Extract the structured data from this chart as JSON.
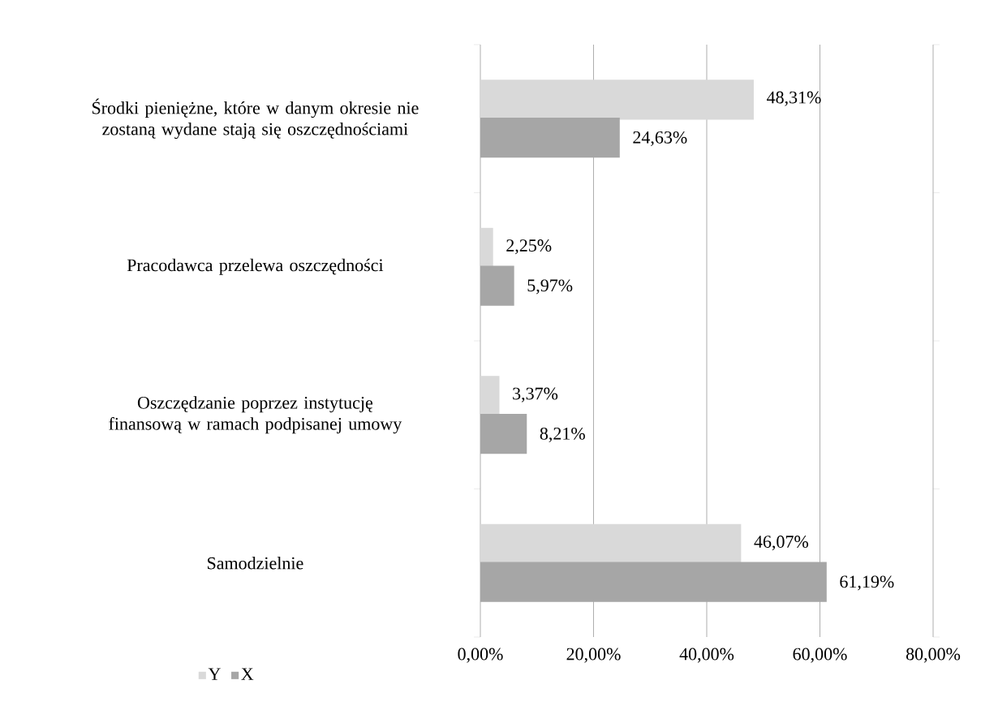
{
  "chart_data": {
    "type": "bar",
    "orientation": "horizontal",
    "categories": [
      "Środki pieniężne, które w danym okresie nie zostaną wydane stają się oszczędnościami",
      "Pracodawca przelewa oszczędności",
      "Oszczędzanie poprzez instytucję finansową w ramach podpisanej umowy",
      "Samodzielnie"
    ],
    "series": [
      {
        "name": "Y",
        "color": "#d9d9d9",
        "values": [
          48.31,
          2.25,
          3.37,
          46.07
        ],
        "value_labels": [
          "48,31%",
          "2,25%",
          "3,37%",
          "46,07%"
        ]
      },
      {
        "name": "X",
        "color": "#a6a6a6",
        "values": [
          24.63,
          5.97,
          8.21,
          61.19
        ],
        "value_labels": [
          "24,63%",
          "5,97%",
          "8,21%",
          "61,19%"
        ]
      }
    ],
    "xlim": [
      0,
      80
    ],
    "xticks": [
      {
        "value": 0,
        "label": "0,00%"
      },
      {
        "value": 20,
        "label": "20,00%"
      },
      {
        "value": 40,
        "label": "40,00%"
      },
      {
        "value": 60,
        "label": "60,00%"
      },
      {
        "value": 80,
        "label": "80,00%"
      }
    ],
    "grid": "x",
    "legend": "bottom left"
  }
}
